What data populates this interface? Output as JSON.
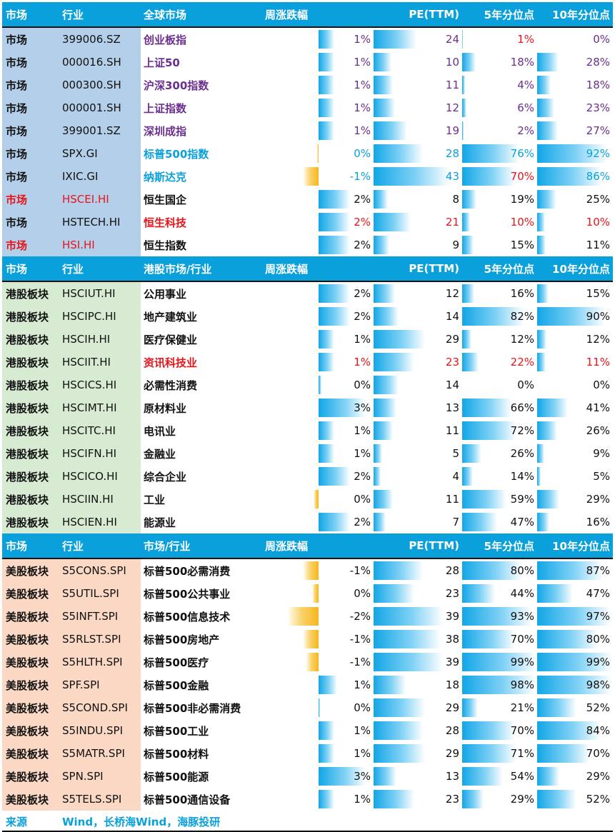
{
  "colors": {
    "header_bg": "#0aa0dc",
    "global_band": "#b4cfe9",
    "hk_band": "#d7ebd2",
    "us_band": "#fad8c4",
    "purple_text": "#6b2e8e",
    "cyan_text": "#0aa0dc",
    "red_text": "#e8141a",
    "black_text": "#111111",
    "positive_bar": "#12a6e6",
    "negative_bar": "#f6b61e"
  },
  "sections": [
    {
      "key": "global",
      "band": "#b4cfe9",
      "header": {
        "col0": "市场",
        "col1": "行业",
        "col2": "全球市场",
        "col3": "周涨跌幅",
        "col4": "PE(TTM)",
        "col5": "5年分位点",
        "col6": "10年分位点"
      },
      "rows": [
        {
          "c0": "市场",
          "c1": "399006.SZ",
          "c2": "创业板指",
          "chg": 1,
          "chg_text": "1%",
          "pe": "24",
          "p5": 1,
          "p5_text": "1%",
          "p10": 0,
          "p10_text": "0%",
          "t0": "#111111",
          "t1": "#111111",
          "t2": "#6b2e8e",
          "tnum": "#6b2e8e",
          "tp5": "#e8141a"
        },
        {
          "c0": "市场",
          "c1": "000016.SH",
          "c2": "上证50",
          "chg": 1,
          "chg_text": "1%",
          "pe": "10",
          "p5": 18,
          "p5_text": "18%",
          "p10": 28,
          "p10_text": "28%",
          "t0": "#111111",
          "t1": "#111111",
          "t2": "#6b2e8e",
          "tnum": "#6b2e8e"
        },
        {
          "c0": "市场",
          "c1": "000300.SH",
          "c2": "沪深300指数",
          "chg": 1,
          "chg_text": "1%",
          "pe": "11",
          "p5": 4,
          "p5_text": "4%",
          "p10": 18,
          "p10_text": "18%",
          "t0": "#111111",
          "t1": "#111111",
          "t2": "#6b2e8e",
          "tnum": "#6b2e8e"
        },
        {
          "c0": "市场",
          "c1": "000001.SH",
          "c2": "上证指数",
          "chg": 1,
          "chg_text": "1%",
          "pe": "12",
          "p5": 6,
          "p5_text": "6%",
          "p10": 23,
          "p10_text": "23%",
          "t0": "#111111",
          "t1": "#111111",
          "t2": "#6b2e8e",
          "tnum": "#6b2e8e"
        },
        {
          "c0": "市场",
          "c1": "399001.SZ",
          "c2": "深圳成指",
          "chg": 1,
          "chg_text": "1%",
          "pe": "19",
          "p5": 2,
          "p5_text": "2%",
          "p10": 27,
          "p10_text": "27%",
          "t0": "#111111",
          "t1": "#111111",
          "t2": "#6b2e8e",
          "tnum": "#6b2e8e"
        },
        {
          "c0": "市场",
          "c1": "SPX.GI",
          "c2": "标普500指数",
          "chg": -0.1,
          "chg_text": "0%",
          "pe": "28",
          "p5": 76,
          "p5_text": "76%",
          "p10": 92,
          "p10_text": "92%",
          "t0": "#111111",
          "t1": "#111111",
          "t2": "#0aa0dc",
          "tnum": "#0aa0dc"
        },
        {
          "c0": "市场",
          "c1": "IXIC.GI",
          "c2": "纳斯达克",
          "chg": -1,
          "chg_text": "-1%",
          "pe": "43",
          "p5": 70,
          "p5_text": "70%",
          "p10": 86,
          "p10_text": "86%",
          "t0": "#111111",
          "t1": "#111111",
          "t2": "#0aa0dc",
          "tnum": "#0aa0dc",
          "tp5": "#e8141a"
        },
        {
          "c0": "市场",
          "c1": "HSCEI.HI",
          "c2": "恒生国企",
          "chg": 2,
          "chg_text": "2%",
          "pe": "8",
          "p5": 19,
          "p5_text": "19%",
          "p10": 25,
          "p10_text": "25%",
          "t0": "#e8141a",
          "t1": "#e8141a",
          "t2": "#111111",
          "tnum": "#111111"
        },
        {
          "c0": "市场",
          "c1": "HSTECH.HI",
          "c2": "恒生科技",
          "chg": 2,
          "chg_text": "2%",
          "pe": "21",
          "p5": 10,
          "p5_text": "10%",
          "p10": 10,
          "p10_text": "10%",
          "t0": "#111111",
          "t1": "#111111",
          "t2": "#e8141a",
          "tnum": "#e8141a"
        },
        {
          "c0": "市场",
          "c1": "HSI.HI",
          "c2": "恒生指数",
          "chg": 2,
          "chg_text": "2%",
          "pe": "9",
          "p5": 15,
          "p5_text": "15%",
          "p10": 11,
          "p10_text": "11%",
          "t0": "#e8141a",
          "t1": "#e8141a",
          "t2": "#111111",
          "tnum": "#111111"
        }
      ]
    },
    {
      "key": "hk",
      "band": "#d7ebd2",
      "header": {
        "col0": "市场",
        "col1": "行业",
        "col2": "港股市场/行业",
        "col3": "周涨跌幅",
        "col4": "PE(TTM)",
        "col5": "5年分位点",
        "col6": "10年分位点"
      },
      "rows": [
        {
          "c0": "港股板块",
          "c1": "HSCIUT.HI",
          "c2": "公用事业",
          "chg": 2,
          "chg_text": "2%",
          "pe": "12",
          "p5": 16,
          "p5_text": "16%",
          "p10": 15,
          "p10_text": "15%",
          "tnum": "#111111"
        },
        {
          "c0": "港股板块",
          "c1": "HSCIPC.HI",
          "c2": "地产建筑业",
          "chg": 2,
          "chg_text": "2%",
          "pe": "14",
          "p5": 82,
          "p5_text": "82%",
          "p10": 90,
          "p10_text": "90%",
          "tnum": "#111111"
        },
        {
          "c0": "港股板块",
          "c1": "HSCIH.HI",
          "c2": "医疗保健业",
          "chg": 1,
          "chg_text": "1%",
          "pe": "29",
          "p5": 12,
          "p5_text": "12%",
          "p10": 12,
          "p10_text": "12%",
          "tnum": "#111111"
        },
        {
          "c0": "港股板块",
          "c1": "HSCIIT.HI",
          "c2": "资讯科技业",
          "chg": 1,
          "chg_text": "1%",
          "pe": "23",
          "p5": 22,
          "p5_text": "22%",
          "p10": 11,
          "p10_text": "11%",
          "t2": "#e8141a",
          "tnum": "#e8141a"
        },
        {
          "c0": "港股板块",
          "c1": "HSCICS.HI",
          "c2": "必需性消费",
          "chg": 0.2,
          "chg_text": "0%",
          "pe": "14",
          "p5": 0,
          "p5_text": "0%",
          "p10": 0,
          "p10_text": "0%",
          "tnum": "#111111"
        },
        {
          "c0": "港股板块",
          "c1": "HSCIMT.HI",
          "c2": "原材料业",
          "chg": 3,
          "chg_text": "3%",
          "pe": "13",
          "p5": 66,
          "p5_text": "66%",
          "p10": 41,
          "p10_text": "41%",
          "tnum": "#111111"
        },
        {
          "c0": "港股板块",
          "c1": "HSCITC.HI",
          "c2": "电讯业",
          "chg": 1,
          "chg_text": "1%",
          "pe": "11",
          "p5": 72,
          "p5_text": "72%",
          "p10": 26,
          "p10_text": "26%",
          "tnum": "#111111"
        },
        {
          "c0": "港股板块",
          "c1": "HSCIFN.HI",
          "c2": "金融业",
          "chg": 1,
          "chg_text": "1%",
          "pe": "5",
          "p5": 26,
          "p5_text": "26%",
          "p10": 9,
          "p10_text": "9%",
          "tnum": "#111111"
        },
        {
          "c0": "港股板块",
          "c1": "HSCICO.HI",
          "c2": "综合企业",
          "chg": 2,
          "chg_text": "2%",
          "pe": "4",
          "p5": 14,
          "p5_text": "14%",
          "p10": 5,
          "p10_text": "5%",
          "tnum": "#111111"
        },
        {
          "c0": "港股板块",
          "c1": "HSCIIN.HI",
          "c2": "工业",
          "chg": -0.3,
          "chg_text": "0%",
          "pe": "11",
          "p5": 59,
          "p5_text": "59%",
          "p10": 29,
          "p10_text": "29%",
          "tnum": "#111111"
        },
        {
          "c0": "港股板块",
          "c1": "HSCIEN.HI",
          "c2": "能源业",
          "chg": 2,
          "chg_text": "2%",
          "pe": "7",
          "p5": 47,
          "p5_text": "47%",
          "p10": 16,
          "p10_text": "16%",
          "tnum": "#111111"
        }
      ]
    },
    {
      "key": "us",
      "band": "#fad8c4",
      "header": {
        "col0": "市场",
        "col1": "行业",
        "col2": "市场/行业",
        "col3": "周涨跌幅",
        "col4": "PE(TTM)",
        "col5": "5年分位点",
        "col6": "10年分位点"
      },
      "rows": [
        {
          "c0": "美股板块",
          "c1": "S5CONS.SPI",
          "c2": "标普500必需消费",
          "chg": -1,
          "chg_text": "-1%",
          "pe": "28",
          "p5": 80,
          "p5_text": "80%",
          "p10": 87,
          "p10_text": "87%",
          "tnum": "#111111"
        },
        {
          "c0": "美股板块",
          "c1": "S5UTIL.SPI",
          "c2": "标普500公共事业",
          "chg": -0.4,
          "chg_text": "0%",
          "pe": "23",
          "p5": 44,
          "p5_text": "44%",
          "p10": 47,
          "p10_text": "47%",
          "tnum": "#111111"
        },
        {
          "c0": "美股板块",
          "c1": "S5INFT.SPI",
          "c2": "标普500信息技术",
          "chg": -2,
          "chg_text": "-2%",
          "pe": "39",
          "p5": 93,
          "p5_text": "93%",
          "p10": 97,
          "p10_text": "97%",
          "tnum": "#111111"
        },
        {
          "c0": "美股板块",
          "c1": "S5RLST.SPI",
          "c2": "标普500房地产",
          "chg": -1,
          "chg_text": "-1%",
          "pe": "38",
          "p5": 70,
          "p5_text": "70%",
          "p10": 80,
          "p10_text": "80%",
          "tnum": "#111111"
        },
        {
          "c0": "美股板块",
          "c1": "S5HLTH.SPI",
          "c2": "标普500医疗",
          "chg": -0.8,
          "chg_text": "-1%",
          "pe": "39",
          "p5": 99,
          "p5_text": "99%",
          "p10": 99,
          "p10_text": "99%",
          "tnum": "#111111"
        },
        {
          "c0": "美股板块",
          "c1": "SPF.SPI",
          "c2": "标普500金融",
          "chg": 1.2,
          "chg_text": "1%",
          "pe": "18",
          "p5": 98,
          "p5_text": "98%",
          "p10": 98,
          "p10_text": "98%",
          "tnum": "#111111"
        },
        {
          "c0": "美股板块",
          "c1": "S5COND.SPI",
          "c2": "标普500非必需消费",
          "chg": 0.1,
          "chg_text": "0%",
          "pe": "29",
          "p5": 21,
          "p5_text": "21%",
          "p10": 52,
          "p10_text": "52%",
          "tnum": "#111111"
        },
        {
          "c0": "美股板块",
          "c1": "S5INDU.SPI",
          "c2": "标普500工业",
          "chg": 1,
          "chg_text": "1%",
          "pe": "28",
          "p5": 70,
          "p5_text": "70%",
          "p10": 84,
          "p10_text": "84%",
          "tnum": "#111111"
        },
        {
          "c0": "美股板块",
          "c1": "S5MATR.SPI",
          "c2": "标普500材料",
          "chg": 1,
          "chg_text": "1%",
          "pe": "29",
          "p5": 71,
          "p5_text": "71%",
          "p10": 70,
          "p10_text": "70%",
          "tnum": "#111111"
        },
        {
          "c0": "美股板块",
          "c1": "SPN.SPI",
          "c2": "标普500能源",
          "chg": 3,
          "chg_text": "3%",
          "pe": "13",
          "p5": 54,
          "p5_text": "54%",
          "p10": 29,
          "p10_text": "29%",
          "tnum": "#111111"
        },
        {
          "c0": "美股板块",
          "c1": "S5TELS.SPI",
          "c2": "标普500通信设备",
          "chg": 1,
          "chg_text": "1%",
          "pe": "23",
          "p5": 29,
          "p5_text": "29%",
          "p10": 52,
          "p10_text": "52%",
          "tnum": "#111111"
        }
      ]
    }
  ],
  "footer": {
    "label": "来源",
    "text": "Wind，长桥海Wind，海豚投研"
  }
}
